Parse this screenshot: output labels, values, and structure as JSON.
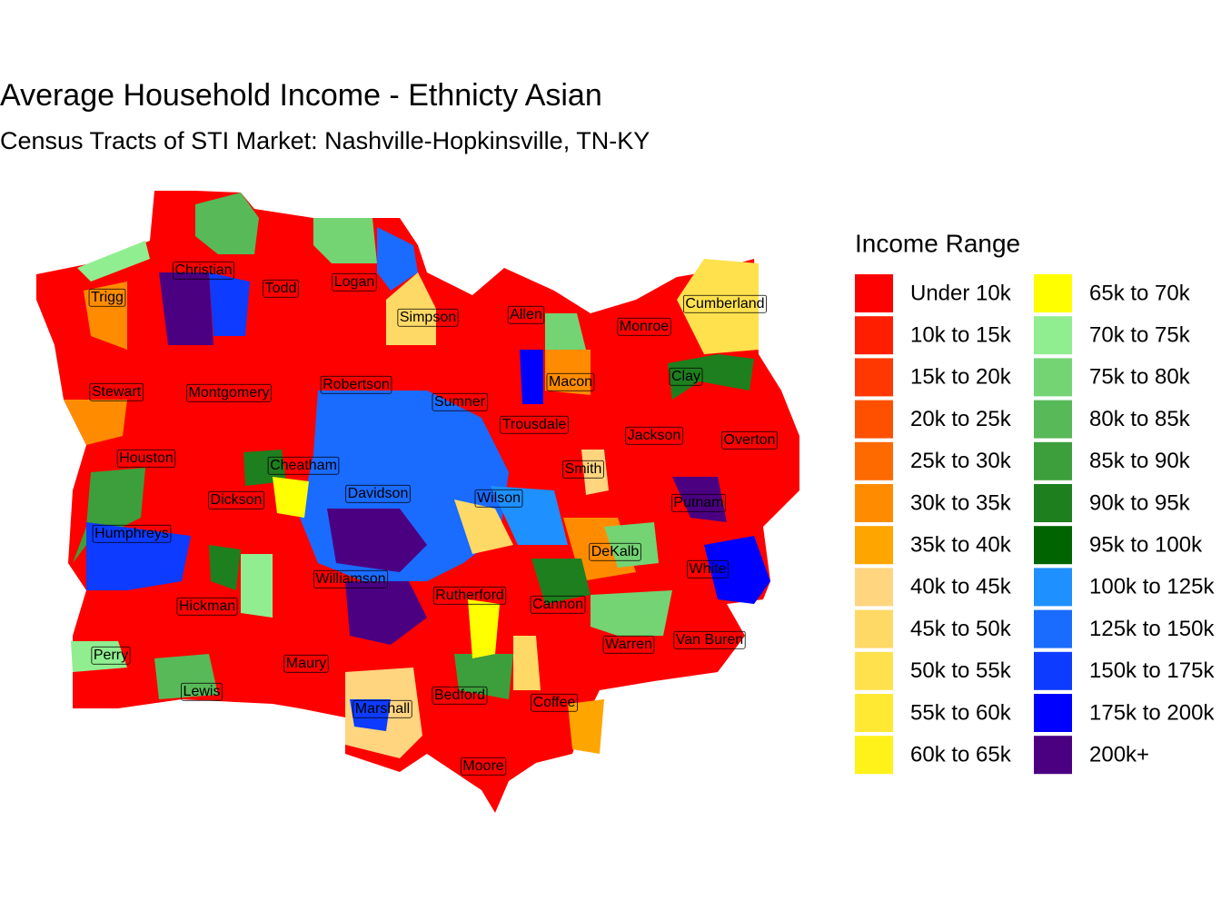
{
  "title": "Average Household Income - Ethnicty Asian",
  "subtitle": "Census Tracts of STI Market: Nashville-Hopkinsville, TN-KY",
  "legend": {
    "title": "Income Range",
    "items": [
      {
        "label": "Under 10k",
        "color": "#ff0000"
      },
      {
        "label": "10k to 15k",
        "color": "#ff1e00"
      },
      {
        "label": "15k to 20k",
        "color": "#ff3700"
      },
      {
        "label": "20k to 25k",
        "color": "#ff5000"
      },
      {
        "label": "25k to 30k",
        "color": "#ff6a00"
      },
      {
        "label": "30k to 35k",
        "color": "#ff8c00"
      },
      {
        "label": "35k to 40k",
        "color": "#ffa500"
      },
      {
        "label": "40k to 45k",
        "color": "#ffd580"
      },
      {
        "label": "45k to 50k",
        "color": "#ffd966"
      },
      {
        "label": "50k to 55k",
        "color": "#ffe14d"
      },
      {
        "label": "55k to 60k",
        "color": "#ffe933"
      },
      {
        "label": "60k to 65k",
        "color": "#fff21a"
      },
      {
        "label": "65k to 70k",
        "color": "#ffff00"
      },
      {
        "label": "70k to 75k",
        "color": "#90ee90"
      },
      {
        "label": "75k to 80k",
        "color": "#74d474"
      },
      {
        "label": "80k to 85k",
        "color": "#58b958"
      },
      {
        "label": "85k to 90k",
        "color": "#3c9f3c"
      },
      {
        "label": "90k to 95k",
        "color": "#1e7f1e"
      },
      {
        "label": "95k to 100k",
        "color": "#006400"
      },
      {
        "label": "100k to 125k",
        "color": "#1e90ff"
      },
      {
        "label": "125k to 150k",
        "color": "#1a6bff"
      },
      {
        "label": "150k to 175k",
        "color": "#0d3bff"
      },
      {
        "label": "175k to 200k",
        "color": "#0000ff"
      },
      {
        "label": "200k+",
        "color": "#4b0082"
      }
    ]
  },
  "counties": [
    "Christian",
    "Trigg",
    "Todd",
    "Logan",
    "Simpson",
    "Allen",
    "Cumberland",
    "Monroe",
    "Macon",
    "Clay",
    "Stewart",
    "Montgomery",
    "Robertson",
    "Sumner",
    "Trousdale",
    "Jackson",
    "Overton",
    "Houston",
    "Cheatham",
    "Smith",
    "Dickson",
    "Davidson",
    "Wilson",
    "Putnam",
    "Humphreys",
    "DeKalb",
    "White",
    "Williamson",
    "Rutherford",
    "Cannon",
    "Hickman",
    "Warren",
    "Van Buren",
    "Perry",
    "Maury",
    "Lewis",
    "Bedford",
    "Coffee",
    "Marshall",
    "Moore"
  ]
}
